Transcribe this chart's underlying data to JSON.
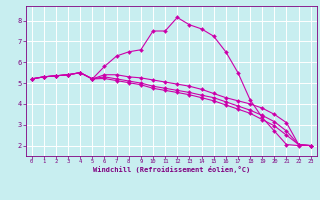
{
  "xlabel": "Windchill (Refroidissement éolien,°C)",
  "background_color": "#c8eef0",
  "line_color": "#cc00aa",
  "grid_color": "#ffffff",
  "text_color": "#800080",
  "xlim": [
    -0.5,
    23.5
  ],
  "ylim": [
    1.5,
    8.7
  ],
  "xticks": [
    0,
    1,
    2,
    3,
    4,
    5,
    6,
    7,
    8,
    9,
    10,
    11,
    12,
    13,
    14,
    15,
    16,
    17,
    18,
    19,
    20,
    21,
    22,
    23
  ],
  "yticks": [
    2,
    3,
    4,
    5,
    6,
    7,
    8
  ],
  "lines": [
    {
      "x": [
        0,
        1,
        2,
        3,
        4,
        5,
        6,
        7,
        8,
        9,
        10,
        11,
        12,
        13,
        14,
        15,
        16,
        17,
        18,
        19,
        20,
        21,
        22,
        23
      ],
      "y": [
        5.2,
        5.3,
        5.35,
        5.4,
        5.5,
        5.2,
        5.8,
        6.3,
        6.5,
        6.6,
        7.5,
        7.5,
        8.15,
        7.8,
        7.6,
        7.25,
        6.5,
        5.5,
        4.2,
        3.35,
        2.7,
        2.05,
        2.0,
        2.0
      ]
    },
    {
      "x": [
        0,
        1,
        2,
        3,
        4,
        5,
        6,
        7,
        8,
        9,
        10,
        11,
        12,
        13,
        14,
        15,
        16,
        17,
        18,
        19,
        20,
        21,
        22,
        23
      ],
      "y": [
        5.2,
        5.3,
        5.35,
        5.4,
        5.5,
        5.2,
        5.4,
        5.4,
        5.3,
        5.25,
        5.15,
        5.05,
        4.95,
        4.85,
        4.7,
        4.5,
        4.3,
        4.15,
        4.0,
        3.8,
        3.5,
        3.1,
        2.05,
        2.0
      ]
    },
    {
      "x": [
        0,
        1,
        2,
        3,
        4,
        5,
        6,
        7,
        8,
        9,
        10,
        11,
        12,
        13,
        14,
        15,
        16,
        17,
        18,
        19,
        20,
        21,
        22,
        23
      ],
      "y": [
        5.2,
        5.3,
        5.35,
        5.4,
        5.5,
        5.2,
        5.3,
        5.2,
        5.1,
        5.0,
        4.85,
        4.75,
        4.65,
        4.55,
        4.42,
        4.3,
        4.1,
        3.9,
        3.7,
        3.45,
        3.15,
        2.7,
        2.05,
        2.0
      ]
    },
    {
      "x": [
        0,
        1,
        2,
        3,
        4,
        5,
        6,
        7,
        8,
        9,
        10,
        11,
        12,
        13,
        14,
        15,
        16,
        17,
        18,
        19,
        20,
        21,
        22,
        23
      ],
      "y": [
        5.2,
        5.3,
        5.35,
        5.4,
        5.5,
        5.2,
        5.22,
        5.12,
        5.02,
        4.92,
        4.75,
        4.65,
        4.55,
        4.44,
        4.3,
        4.15,
        3.95,
        3.75,
        3.55,
        3.25,
        2.95,
        2.5,
        2.05,
        2.0
      ]
    }
  ]
}
